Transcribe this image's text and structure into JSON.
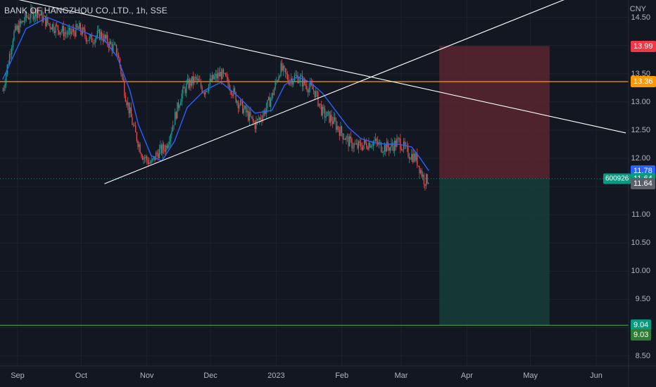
{
  "header": {
    "title": "BANK OF HANGZHOU CO.,LTD., 1h, SSE",
    "currency": "CNY"
  },
  "symbol_tag": "600926",
  "colors": {
    "background": "#131722",
    "grid": "#1e222d",
    "candle_up": "#26a69a",
    "candle_down": "#ef5350",
    "moving_average": "#2962ff",
    "trendline": "#ffffff",
    "horizontal_line": "#ff9800",
    "target_line": "#4caf50",
    "stop_zone": "#5b2630",
    "profit_zone": "#163b38"
  },
  "chart_data": {
    "type": "line",
    "title": "BANK OF HANGZHOU CO.,LTD., 1h, SSE",
    "xlabel": "",
    "ylabel": "",
    "x_ticks": [
      "Sep",
      "Oct",
      "Nov",
      "Dec",
      "2023",
      "Feb",
      "Mar",
      "Apr",
      "May",
      "Jun"
    ],
    "y_ticks": [
      14.5,
      14.0,
      13.5,
      13.0,
      12.5,
      12.0,
      11.5,
      11.0,
      10.5,
      10.0,
      9.5,
      9.0,
      8.5
    ],
    "ylim": [
      8.42,
      14.62
    ],
    "grid": true,
    "legend": "none",
    "price_series": {
      "name": "",
      "x": [
        "2022-08-25",
        "2022-08-30",
        "2022-09-05",
        "2022-09-10",
        "2022-09-15",
        "2022-09-20",
        "2022-09-25",
        "2022-09-30",
        "2022-10-05",
        "2022-10-10",
        "2022-10-15",
        "2022-10-18",
        "2022-10-22",
        "2022-10-26",
        "2022-10-30",
        "2022-11-03",
        "2022-11-06",
        "2022-11-10",
        "2022-11-14",
        "2022-11-17",
        "2022-11-20",
        "2022-11-24",
        "2022-11-28",
        "2022-12-02",
        "2022-12-06",
        "2022-12-10",
        "2022-12-14",
        "2022-12-18",
        "2022-12-22",
        "2022-12-26",
        "2022-12-30",
        "2023-01-03",
        "2023-01-07",
        "2023-01-11",
        "2023-01-15",
        "2023-01-19",
        "2023-01-23",
        "2023-01-27",
        "2023-01-31",
        "2023-02-04",
        "2023-02-08",
        "2023-02-12",
        "2023-02-16",
        "2023-02-20",
        "2023-02-24",
        "2023-02-28",
        "2023-03-04",
        "2023-03-08",
        "2023-03-10",
        "2023-03-12",
        "2023-03-14"
      ],
      "y": [
        13.2,
        14.2,
        14.5,
        14.6,
        14.4,
        14.3,
        14.2,
        14.3,
        14.1,
        14.2,
        14.0,
        13.9,
        13.1,
        12.5,
        12.05,
        11.9,
        12.1,
        12.2,
        12.7,
        13.1,
        13.3,
        13.4,
        13.2,
        13.4,
        13.5,
        13.3,
        13.0,
        12.8,
        12.6,
        12.8,
        13.1,
        13.6,
        13.4,
        13.45,
        13.3,
        13.2,
        12.8,
        12.7,
        12.5,
        12.3,
        12.2,
        12.25,
        12.3,
        12.2,
        12.2,
        12.3,
        12.1,
        12.0,
        11.8,
        11.6,
        11.64
      ]
    },
    "moving_average": {
      "name": "",
      "x": [
        "2022-08-25",
        "2022-09-05",
        "2022-09-15",
        "2022-09-25",
        "2022-10-05",
        "2022-10-12",
        "2022-10-18",
        "2022-10-24",
        "2022-10-28",
        "2022-11-03",
        "2022-11-08",
        "2022-11-14",
        "2022-11-20",
        "2022-11-28",
        "2022-12-06",
        "2022-12-14",
        "2022-12-22",
        "2022-12-30",
        "2023-01-05",
        "2023-01-11",
        "2023-01-17",
        "2023-01-23",
        "2023-01-29",
        "2023-02-04",
        "2023-02-10",
        "2023-02-16",
        "2023-02-22",
        "2023-02-28",
        "2023-03-06",
        "2023-03-10",
        "2023-03-14"
      ],
      "y": [
        13.4,
        14.3,
        14.5,
        14.35,
        14.2,
        14.1,
        13.8,
        13.2,
        12.6,
        12.05,
        11.95,
        12.3,
        12.9,
        13.2,
        13.35,
        13.1,
        12.8,
        12.85,
        13.3,
        13.45,
        13.35,
        13.15,
        12.85,
        12.55,
        12.35,
        12.28,
        12.25,
        12.25,
        12.2,
        12.0,
        11.78
      ]
    },
    "trendlines": [
      {
        "from": {
          "x": "2022-08-22",
          "y": 14.9
        },
        "to": {
          "x": "2023-06-15",
          "y": 12.45
        }
      },
      {
        "from": {
          "x": "2022-10-12",
          "y": 11.55
        },
        "to": {
          "x": "2023-06-05",
          "y": 15.1
        }
      }
    ],
    "horizontal_line": {
      "y": 13.36
    },
    "last_price_line": {
      "y": 11.64
    },
    "target_line": {
      "y": 9.04
    },
    "position": {
      "start": "2023-03-19",
      "end": "2023-05-10",
      "stop": 13.99,
      "entry": 11.64,
      "target": 9.04
    },
    "price_labels": [
      {
        "value": "13.99",
        "y": 13.99,
        "color": "#f23645"
      },
      {
        "value": "13.36",
        "y": 13.36,
        "color": "#ff9800"
      },
      {
        "value": "11.78",
        "y": 11.78,
        "color": "#2962ff"
      },
      {
        "value": "11.64",
        "y": 11.64,
        "color": "#089981"
      },
      {
        "value": "11.64",
        "y": 11.555,
        "color": "#5d606b"
      },
      {
        "value": "9.04",
        "y": 9.04,
        "color": "#089981"
      },
      {
        "value": "9.03",
        "y": 8.87,
        "color": "#2e7d32"
      }
    ]
  }
}
